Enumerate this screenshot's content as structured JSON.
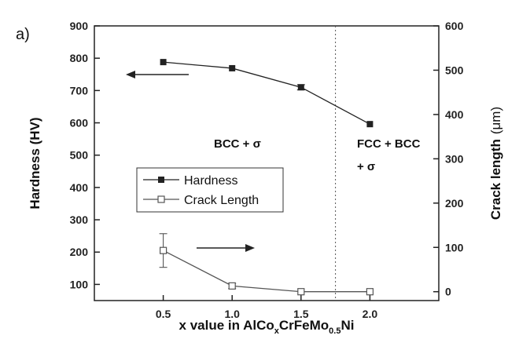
{
  "chart_data": {
    "type": "line",
    "panel_label": "a)",
    "xlabel": {
      "main": "x value in AlCo",
      "sub1": "x",
      "mid": "CrFeMo",
      "sub2": "0.5",
      "end": "Ni"
    },
    "ylabel_left": "Hardness (HV)",
    "ylabel_right": {
      "main": "Crack length",
      "unit": "(μm)"
    },
    "xlim": [
      0.0,
      2.5
    ],
    "ylim_left": [
      50,
      900
    ],
    "ylim_right": [
      -20,
      600
    ],
    "x_ticks": [
      {
        "value": 0.5,
        "label": "0.5"
      },
      {
        "value": 1.0,
        "label": "1.0"
      },
      {
        "value": 1.5,
        "label": "1.5"
      },
      {
        "value": 2.0,
        "label": "2.0"
      }
    ],
    "y_ticks_left": [
      100,
      200,
      300,
      400,
      500,
      600,
      700,
      800,
      900
    ],
    "y_ticks_right": [
      0,
      100,
      200,
      300,
      400,
      500,
      600
    ],
    "series": [
      {
        "name": "Hardness",
        "axis": "left",
        "marker": "filled-square",
        "color": "#222222",
        "x": [
          0.5,
          1.0,
          1.5,
          2.0
        ],
        "y": [
          788,
          769,
          710,
          596
        ],
        "err": [
          0,
          0,
          8,
          0
        ]
      },
      {
        "name": "Crack Length",
        "axis": "right",
        "marker": "open-square",
        "color": "#555555",
        "x": [
          0.5,
          1.0,
          1.5,
          2.0
        ],
        "y": [
          93,
          13,
          0,
          0
        ],
        "err": [
          38,
          6,
          0,
          0
        ]
      }
    ],
    "phase_boundary_x": 1.75,
    "annotations": [
      {
        "text": "BCC + σ"
      },
      {
        "text": "FCC + BCC"
      },
      {
        "text": "+ σ"
      }
    ],
    "legend_position": "center-left",
    "grid": false
  }
}
